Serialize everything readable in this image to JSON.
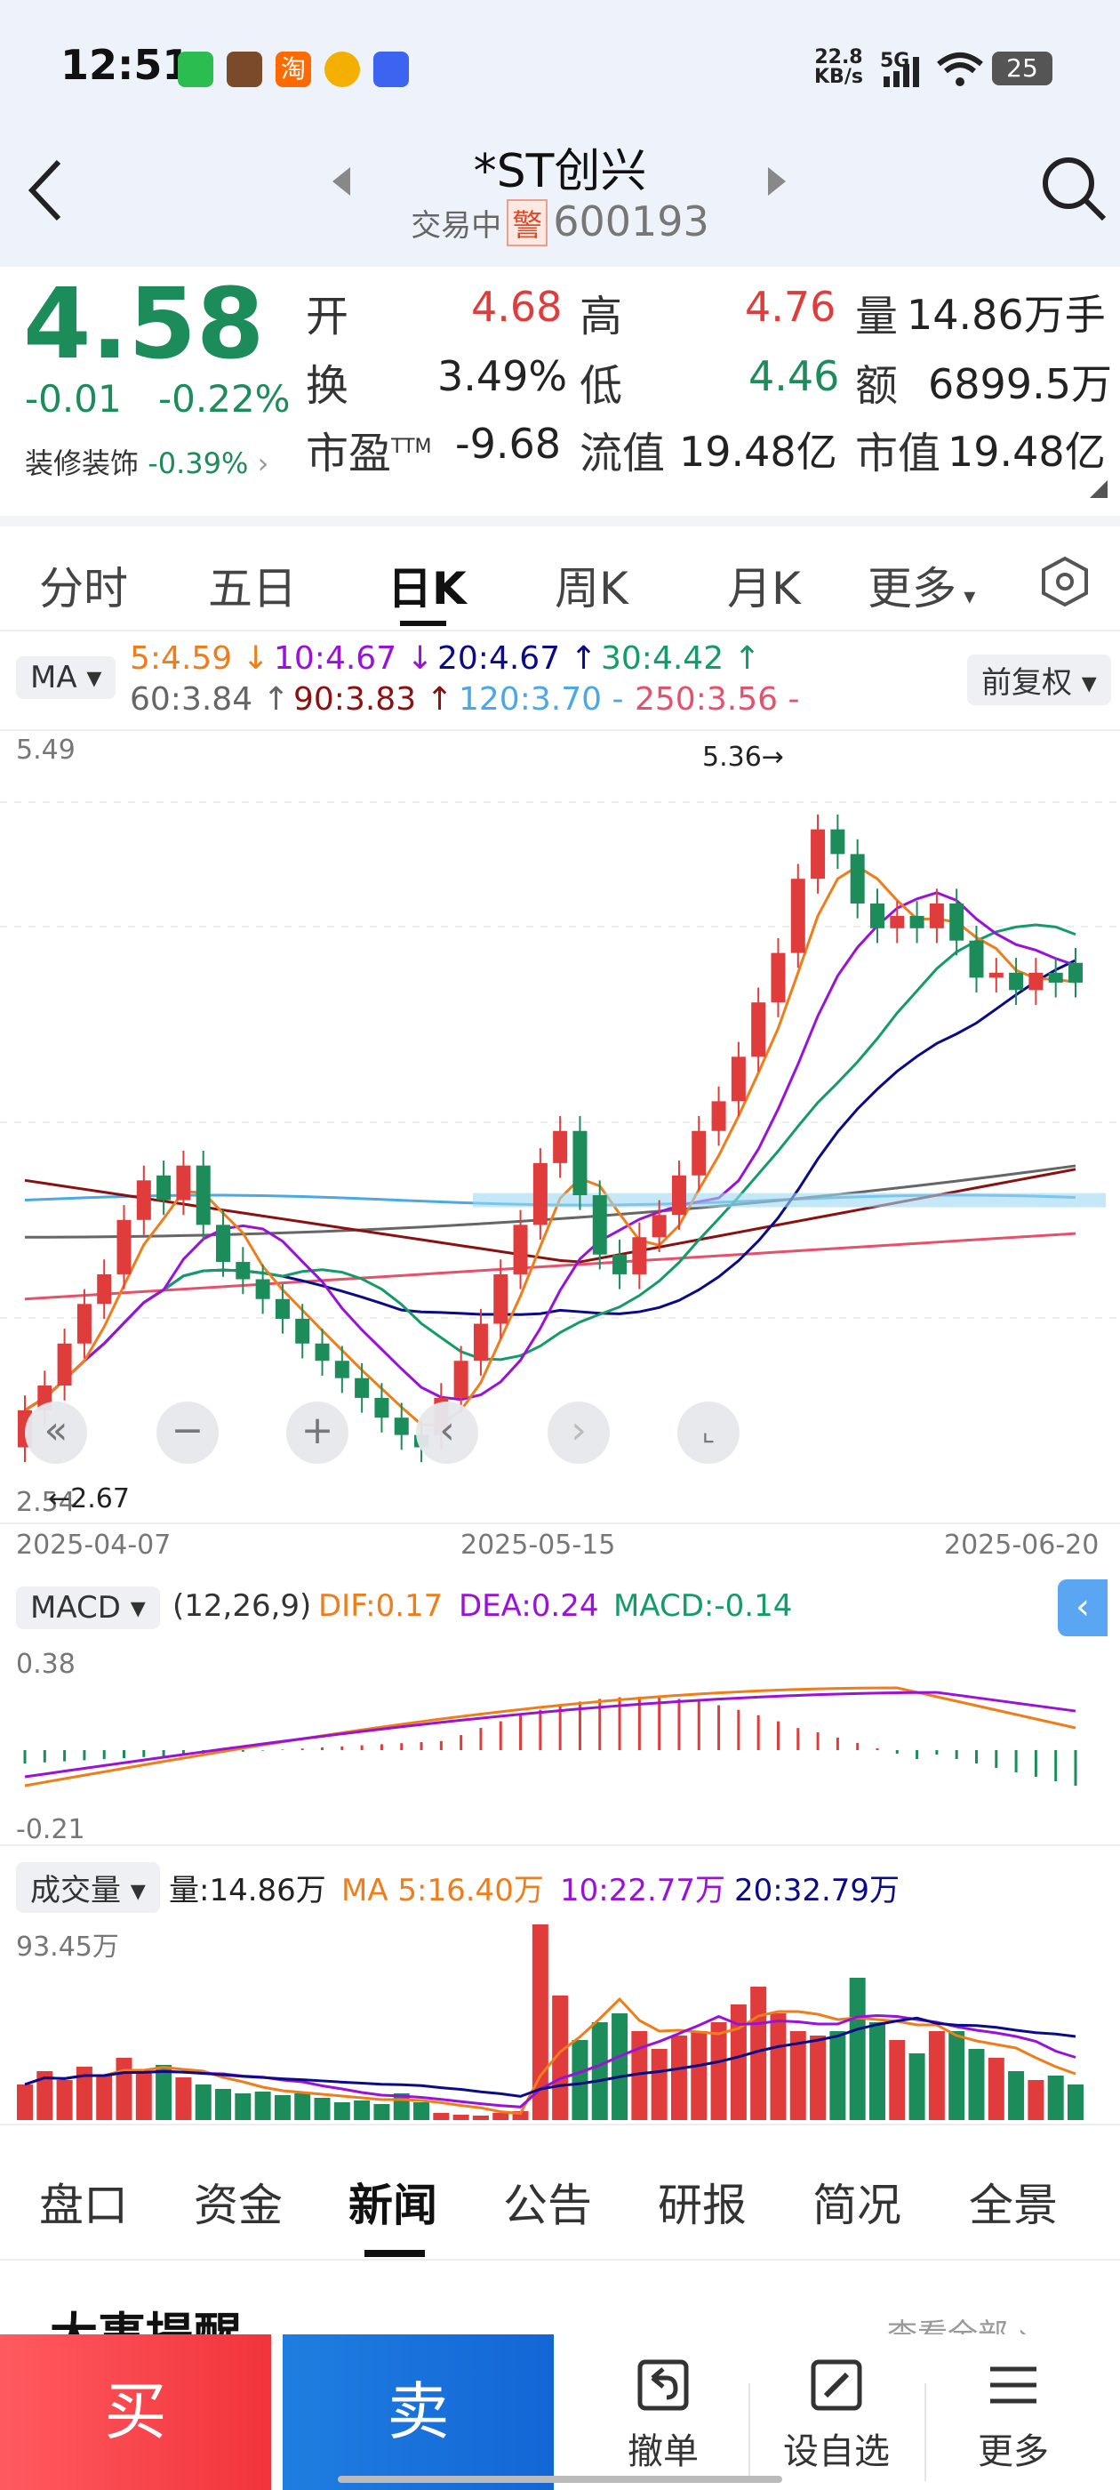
{
  "status_bar": {
    "time": "12:51",
    "net_speed_value": "22.8",
    "net_speed_unit": "KB/s",
    "signal": "5G",
    "battery": "25",
    "app_icons": [
      "wechat-icon",
      "game-icon",
      "taobao-icon",
      "fruit-icon",
      "vivo-icon"
    ]
  },
  "header": {
    "title": "*ST创兴",
    "trade_status": "交易中",
    "warning_badge": "警",
    "code": "600193"
  },
  "quote": {
    "price": "4.58",
    "change": "-0.01",
    "change_pct": "-0.22%",
    "sector_name": "装修装饰",
    "sector_pct": "-0.39%",
    "open_label": "开",
    "open": "4.68",
    "high_label": "高",
    "high": "4.76",
    "volume_label": "量",
    "volume": "14.86万手",
    "turnover_label": "换",
    "turnover": "3.49%",
    "low_label": "低",
    "low": "4.46",
    "amount_label": "额",
    "amount": "6899.5万",
    "pe_label": "市盈",
    "pe_sup": "TTM",
    "pe": "-9.68",
    "float_cap_label": "流值",
    "float_cap": "19.48亿",
    "mkt_cap_label": "市值",
    "mkt_cap": "19.48亿"
  },
  "period_tabs": {
    "t1": "分时",
    "t2": "五日",
    "t3": "日K",
    "t4": "周K",
    "t5": "月K",
    "t6": "更多",
    "active": "日K"
  },
  "ma_bar": {
    "selector": "MA",
    "adjust": "前复权",
    "ma5": "5:4.59 ↓",
    "ma10": "10:4.67 ↓",
    "ma20": "20:4.67 ↑",
    "ma30": "30:4.42 ↑",
    "ma60": "60:3.84 ↑",
    "ma90": "90:3.83 ↑",
    "ma120": "120:3.70 -",
    "ma250": "250:3.56 -",
    "colors": {
      "ma5": "#ef7d1a",
      "ma10": "#9a12d8",
      "ma20": "#0b0b8a",
      "ma30": "#139b6a",
      "ma60": "#666666",
      "ma90": "#8b1010",
      "ma120": "#4aa8e6",
      "ma250": "#e6506a"
    }
  },
  "kline": {
    "top_label": "5.49",
    "bottom_label": "2.54",
    "max_mark": "5.36→",
    "min_mark": "←2.67",
    "date_start": "2025-04-07",
    "date_mid": "2025-05-15",
    "date_end": "2025-06-20"
  },
  "macd": {
    "selector": "MACD",
    "params": "(12,26,9)",
    "dif": "DIF:0.17",
    "dea": "DEA:0.24",
    "macd": "MACD:-0.14",
    "top": "0.38",
    "bottom": "-0.21"
  },
  "vol": {
    "selector": "成交量",
    "vol": "量:14.86万",
    "ma5": "MA 5:16.40万",
    "ma10": "10:22.77万",
    "ma20": "20:32.79万",
    "top": "93.45万"
  },
  "bottom_tabs": {
    "b1": "盘口",
    "b2": "资金",
    "b3": "新闻",
    "b4": "公告",
    "b5": "研报",
    "b6": "简况",
    "b7": "全景",
    "active": "新闻"
  },
  "peek": {
    "title": "大事提醒",
    "more": "查看全部"
  },
  "actions": {
    "buy": "买",
    "sell": "卖",
    "cancel": "撤单",
    "watch": "设自选",
    "more": "更多"
  },
  "colors": {
    "up": "#e03c3c",
    "down": "#1d8c5b",
    "header_bg": "#eef3fb"
  }
}
